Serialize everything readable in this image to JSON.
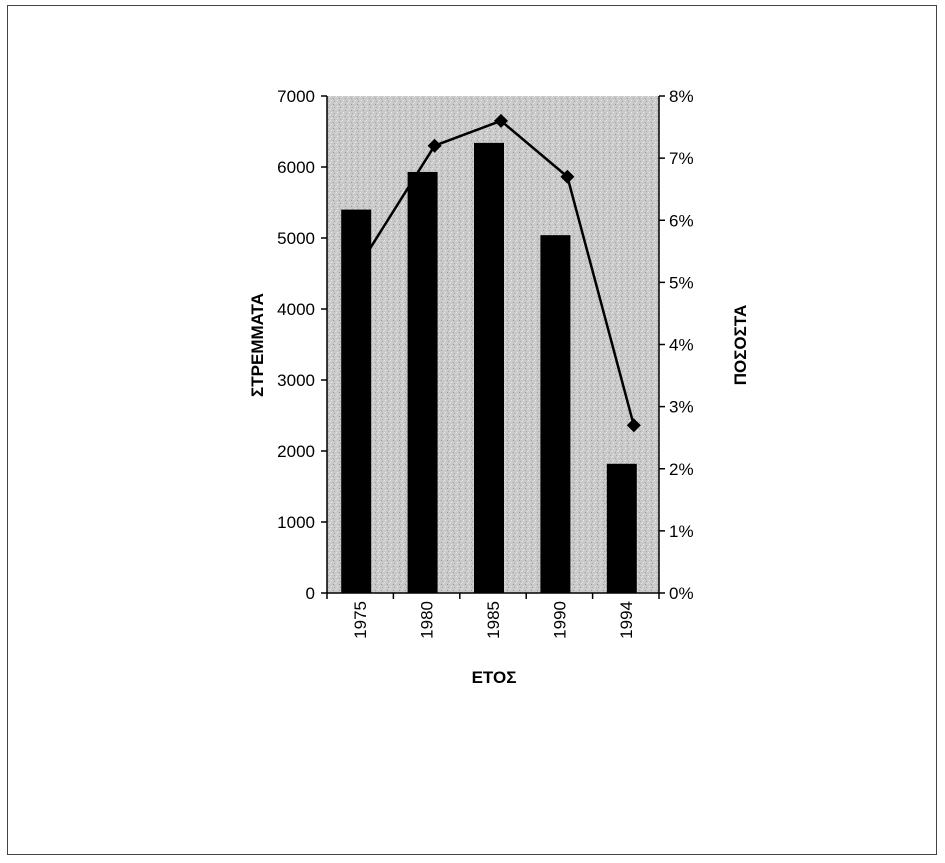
{
  "chart_data": {
    "type": "bar",
    "title": "",
    "categories": [
      "1975",
      "1980",
      "1985",
      "1990",
      "1994"
    ],
    "series": [
      {
        "values": [
          5400,
          5930,
          6340,
          5040,
          1820
        ],
        "axis": "left",
        "type": "bar",
        "color": "#000000"
      },
      {
        "values": [
          5.5,
          7.2,
          7.6,
          6.7,
          2.7
        ],
        "axis": "right",
        "type": "line",
        "unit": "%",
        "color": "#000000",
        "marker": "diamond"
      }
    ],
    "xlabel": "ΕΤΟΣ",
    "ylabel": "ΣΤΡΕΜΜΑΤΑ",
    "y2label": "ΠΟΣΟΣΤΑ",
    "ylim": [
      0,
      7000
    ],
    "y2lim": [
      0,
      8
    ],
    "yticks": [
      "0",
      "1000",
      "2000",
      "3000",
      "4000",
      "5000",
      "6000",
      "7000"
    ],
    "y2ticks": [
      "0%",
      "1%",
      "2%",
      "3%",
      "4%",
      "5%",
      "6%",
      "7%",
      "8%"
    ],
    "grid": false,
    "plot_background": "#c8c8c8"
  }
}
